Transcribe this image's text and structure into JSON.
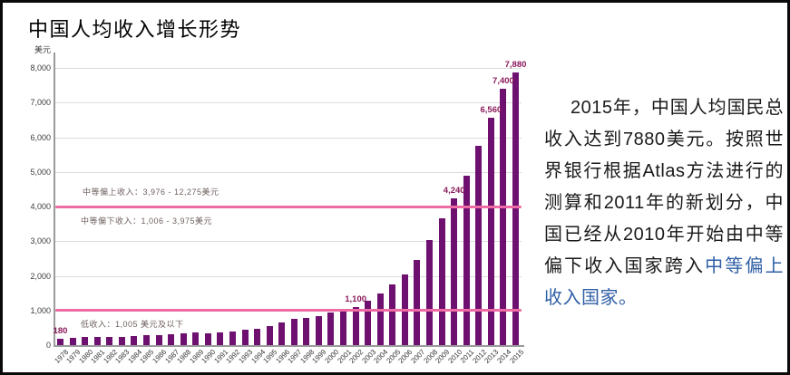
{
  "title": "中国人均收入增长形势",
  "chart_data": {
    "type": "bar",
    "title": "中国人均收入增长形势",
    "xlabel": "",
    "ylabel": "美元",
    "ylim": [
      0,
      8000
    ],
    "grid": true,
    "y_ticks": [
      "0",
      "1,000",
      "2,000",
      "3,000",
      "4,000",
      "5,000",
      "6,000",
      "7,000",
      "8,000"
    ],
    "y_tick_values": [
      0,
      1000,
      2000,
      3000,
      4000,
      5000,
      6000,
      7000,
      8000
    ],
    "bar_color": "#6e1070",
    "categories": [
      "1978",
      "1979",
      "1980",
      "1981",
      "1982",
      "1983",
      "1984",
      "1985",
      "1986",
      "1987",
      "1988",
      "1989",
      "1990",
      "1991",
      "1992",
      "1993",
      "1994",
      "1995",
      "1996",
      "1997",
      "1998",
      "1999",
      "2000",
      "2001",
      "2002",
      "2003",
      "2004",
      "2005",
      "2006",
      "2007",
      "2008",
      "2009",
      "2010",
      "2011",
      "2012",
      "2013",
      "2014",
      "2015"
    ],
    "values": [
      180,
      210,
      230,
      230,
      230,
      240,
      260,
      290,
      300,
      310,
      340,
      360,
      340,
      360,
      400,
      440,
      470,
      540,
      650,
      750,
      790,
      840,
      930,
      1000,
      1100,
      1270,
      1500,
      1740,
      2040,
      2470,
      3040,
      3650,
      4240,
      4900,
      5740,
      6560,
      7400,
      7880
    ],
    "data_labels": [
      {
        "category": "1978",
        "text": "180"
      },
      {
        "category": "2002",
        "text": "1,100"
      },
      {
        "category": "2010",
        "text": "4,240"
      },
      {
        "category": "2013",
        "text": "6,560"
      },
      {
        "category": "2014",
        "text": "7,400"
      },
      {
        "category": "2015",
        "text": "7,880"
      }
    ],
    "data_label_color": "#8a1a5a",
    "reference_lines": [
      {
        "value": 3975,
        "color": "#ee6ba3",
        "label_above": "中等偏上收入：3,976 - 12,275美元",
        "label_below": "中等偏下收入：1,006 - 3,975美元"
      },
      {
        "value": 1005,
        "color": "#ee6ba3",
        "label_below": "低收入：1,005 美元及以下"
      }
    ]
  },
  "paragraph": {
    "text_color": "#1a1a1a",
    "highlight_color": "#2f5fa5",
    "lines": [
      {
        "indent": true,
        "segments": [
          {
            "text": "2015年，中国人均国民总",
            "blue": false
          }
        ]
      },
      {
        "indent": false,
        "segments": [
          {
            "text": "收入达到7880美元。按照世",
            "blue": false
          }
        ]
      },
      {
        "indent": false,
        "segments": [
          {
            "text": "界银行根据Atlas方法进行的",
            "blue": false
          }
        ]
      },
      {
        "indent": false,
        "segments": [
          {
            "text": "测算和2011年的新划分，中",
            "blue": false
          }
        ]
      },
      {
        "indent": false,
        "segments": [
          {
            "text": "国已经从2010年开始由中等",
            "blue": false
          }
        ]
      },
      {
        "indent": false,
        "segments": [
          {
            "text": "偏下收入国家跨入",
            "blue": false
          },
          {
            "text": "中等偏上",
            "blue": true
          }
        ]
      },
      {
        "indent": false,
        "segments": [
          {
            "text": "收入国家。",
            "blue": true
          }
        ]
      }
    ]
  },
  "colors": {
    "frame_border": "#0a0a0a",
    "gridline": "#dcdcdc",
    "axis": "#9a9a9a",
    "band_label": "#6f625f"
  }
}
